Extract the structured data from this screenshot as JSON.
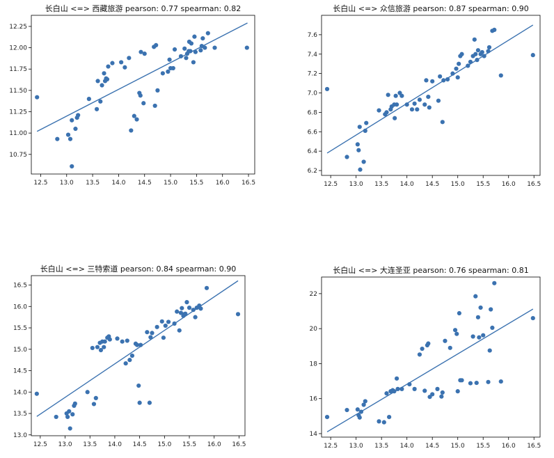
{
  "colors": {
    "marker": "#3b72b0",
    "line": "#3b72b0"
  },
  "chart_data": [
    {
      "type": "scatter",
      "title": "长白山 <=> 西藏旅游 pearson: 0.77 spearman: 0.82",
      "xlim": [
        12.32,
        16.62
      ],
      "ylim": [
        10.52,
        12.38
      ],
      "xticks": [
        12.5,
        13.0,
        13.5,
        14.0,
        14.5,
        15.0,
        15.5,
        16.0,
        16.5
      ],
      "yticks": [
        10.75,
        11.0,
        11.25,
        11.5,
        11.75,
        12.0,
        12.25
      ],
      "xtick_labels": [
        "12.5",
        "13.0",
        "13.5",
        "14.0",
        "14.5",
        "15.0",
        "15.5",
        "16.0",
        "16.5"
      ],
      "ytick_labels": [
        "10.75",
        "11.00",
        "11.25",
        "11.50",
        "11.75",
        "12.00",
        "12.25"
      ],
      "fit": [
        [
          12.43,
          11.02
        ],
        [
          16.48,
          12.29
        ]
      ],
      "points": [
        [
          12.43,
          11.42
        ],
        [
          12.82,
          10.93
        ],
        [
          13.03,
          10.98
        ],
        [
          13.07,
          10.93
        ],
        [
          13.1,
          11.15
        ],
        [
          13.1,
          10.61
        ],
        [
          13.17,
          11.05
        ],
        [
          13.2,
          11.18
        ],
        [
          13.22,
          11.21
        ],
        [
          13.43,
          11.4
        ],
        [
          13.58,
          11.28
        ],
        [
          13.6,
          11.61
        ],
        [
          13.65,
          11.37
        ],
        [
          13.68,
          11.56
        ],
        [
          13.72,
          11.7
        ],
        [
          13.74,
          11.61
        ],
        [
          13.76,
          11.64
        ],
        [
          13.78,
          11.63
        ],
        [
          13.8,
          11.78
        ],
        [
          13.88,
          11.82
        ],
        [
          14.05,
          11.83
        ],
        [
          14.12,
          11.77
        ],
        [
          14.2,
          11.88
        ],
        [
          14.24,
          11.03
        ],
        [
          14.3,
          11.2
        ],
        [
          14.35,
          11.16
        ],
        [
          14.4,
          11.47
        ],
        [
          14.42,
          11.44
        ],
        [
          14.43,
          11.95
        ],
        [
          14.48,
          11.35
        ],
        [
          14.5,
          11.93
        ],
        [
          14.68,
          12.01
        ],
        [
          14.7,
          11.32
        ],
        [
          14.72,
          12.03
        ],
        [
          14.75,
          11.5
        ],
        [
          14.85,
          11.7
        ],
        [
          14.95,
          11.72
        ],
        [
          14.98,
          11.86
        ],
        [
          15.0,
          11.76
        ],
        [
          15.05,
          11.76
        ],
        [
          15.08,
          11.98
        ],
        [
          15.2,
          11.9
        ],
        [
          15.27,
          11.99
        ],
        [
          15.3,
          11.88
        ],
        [
          15.32,
          11.93
        ],
        [
          15.35,
          11.96
        ],
        [
          15.36,
          12.07
        ],
        [
          15.38,
          11.96
        ],
        [
          15.4,
          12.05
        ],
        [
          15.44,
          11.83
        ],
        [
          15.46,
          12.13
        ],
        [
          15.48,
          11.95
        ],
        [
          15.58,
          11.97
        ],
        [
          15.6,
          12.02
        ],
        [
          15.62,
          12.11
        ],
        [
          15.66,
          12.0
        ],
        [
          15.72,
          12.17
        ],
        [
          15.85,
          12.0
        ],
        [
          16.47,
          12.0
        ]
      ]
    },
    {
      "type": "scatter",
      "title": "长白山 <=> 众信旅游 pearson: 0.87 spearman: 0.90",
      "xlim": [
        12.32,
        16.62
      ],
      "ylim": [
        6.15,
        7.8
      ],
      "xticks": [
        12.5,
        13.0,
        13.5,
        14.0,
        14.5,
        15.0,
        15.5,
        16.0,
        16.5
      ],
      "yticks": [
        6.2,
        6.4,
        6.6,
        6.8,
        7.0,
        7.2,
        7.4,
        7.6
      ],
      "xtick_labels": [
        "12.5",
        "13.0",
        "13.5",
        "14.0",
        "14.5",
        "15.0",
        "15.5",
        "16.0",
        "16.5"
      ],
      "ytick_labels": [
        "6.2",
        "6.4",
        "6.6",
        "6.8",
        "7.0",
        "7.2",
        "7.4",
        "7.6"
      ],
      "fit": [
        [
          12.43,
          6.38
        ],
        [
          16.48,
          7.7
        ]
      ],
      "points": [
        [
          12.43,
          7.04
        ],
        [
          12.82,
          6.34
        ],
        [
          13.03,
          6.47
        ],
        [
          13.05,
          6.41
        ],
        [
          13.07,
          6.65
        ],
        [
          13.08,
          6.21
        ],
        [
          13.15,
          6.29
        ],
        [
          13.18,
          6.61
        ],
        [
          13.2,
          6.69
        ],
        [
          13.45,
          6.82
        ],
        [
          13.57,
          6.78
        ],
        [
          13.6,
          6.8
        ],
        [
          13.63,
          6.98
        ],
        [
          13.68,
          6.83
        ],
        [
          13.7,
          6.86
        ],
        [
          13.75,
          6.88
        ],
        [
          13.76,
          6.74
        ],
        [
          13.78,
          6.97
        ],
        [
          13.8,
          6.88
        ],
        [
          13.86,
          7.0
        ],
        [
          13.9,
          6.97
        ],
        [
          14.0,
          6.88
        ],
        [
          14.1,
          6.83
        ],
        [
          14.15,
          6.89
        ],
        [
          14.2,
          6.83
        ],
        [
          14.25,
          6.93
        ],
        [
          14.35,
          6.88
        ],
        [
          14.38,
          7.13
        ],
        [
          14.42,
          6.96
        ],
        [
          14.44,
          6.85
        ],
        [
          14.5,
          7.12
        ],
        [
          14.62,
          6.92
        ],
        [
          14.65,
          7.17
        ],
        [
          14.7,
          6.7
        ],
        [
          14.72,
          7.13
        ],
        [
          14.8,
          7.14
        ],
        [
          14.9,
          7.2
        ],
        [
          14.97,
          7.25
        ],
        [
          15.0,
          7.16
        ],
        [
          15.02,
          7.3
        ],
        [
          15.05,
          7.38
        ],
        [
          15.08,
          7.4
        ],
        [
          15.2,
          7.28
        ],
        [
          15.25,
          7.32
        ],
        [
          15.3,
          7.38
        ],
        [
          15.33,
          7.55
        ],
        [
          15.35,
          7.4
        ],
        [
          15.38,
          7.34
        ],
        [
          15.4,
          7.44
        ],
        [
          15.45,
          7.4
        ],
        [
          15.48,
          7.42
        ],
        [
          15.52,
          7.38
        ],
        [
          15.6,
          7.43
        ],
        [
          15.62,
          7.47
        ],
        [
          15.68,
          7.64
        ],
        [
          15.72,
          7.65
        ],
        [
          15.85,
          7.18
        ],
        [
          16.48,
          7.39
        ]
      ]
    },
    {
      "type": "scatter",
      "title": "长白山 <=> 三特索道 pearson: 0.84 spearman: 0.90",
      "xlim": [
        12.32,
        16.62
      ],
      "ylim": [
        12.98,
        16.72
      ],
      "xticks": [
        12.5,
        13.0,
        13.5,
        14.0,
        14.5,
        15.0,
        15.5,
        16.0,
        16.5
      ],
      "yticks": [
        13.0,
        13.5,
        14.0,
        14.5,
        15.0,
        15.5,
        16.0,
        16.5
      ],
      "xtick_labels": [
        "12.5",
        "13.0",
        "13.5",
        "14.0",
        "14.5",
        "15.0",
        "15.5",
        "16.0",
        "16.5"
      ],
      "ytick_labels": [
        "13.0",
        "13.5",
        "14.0",
        "14.5",
        "15.0",
        "15.5",
        "16.0",
        "16.5"
      ],
      "fit": [
        [
          12.43,
          13.43
        ],
        [
          16.48,
          16.6
        ]
      ],
      "points": [
        [
          12.43,
          13.96
        ],
        [
          12.82,
          13.42
        ],
        [
          13.03,
          13.5
        ],
        [
          13.05,
          13.42
        ],
        [
          13.08,
          13.55
        ],
        [
          13.1,
          13.15
        ],
        [
          13.15,
          13.48
        ],
        [
          13.18,
          13.68
        ],
        [
          13.2,
          13.73
        ],
        [
          13.45,
          14.0
        ],
        [
          13.55,
          15.03
        ],
        [
          13.58,
          13.72
        ],
        [
          13.62,
          13.86
        ],
        [
          13.65,
          15.05
        ],
        [
          13.7,
          15.15
        ],
        [
          13.72,
          14.98
        ],
        [
          13.75,
          15.18
        ],
        [
          13.78,
          15.05
        ],
        [
          13.8,
          15.18
        ],
        [
          13.85,
          15.27
        ],
        [
          13.88,
          15.3
        ],
        [
          13.9,
          15.23
        ],
        [
          14.05,
          15.25
        ],
        [
          14.15,
          15.18
        ],
        [
          14.22,
          14.67
        ],
        [
          14.25,
          15.2
        ],
        [
          14.3,
          14.75
        ],
        [
          14.35,
          14.85
        ],
        [
          14.42,
          15.13
        ],
        [
          14.45,
          15.1
        ],
        [
          14.48,
          14.15
        ],
        [
          14.5,
          13.75
        ],
        [
          14.52,
          15.1
        ],
        [
          14.65,
          15.4
        ],
        [
          14.7,
          13.75
        ],
        [
          14.72,
          15.28
        ],
        [
          14.75,
          15.38
        ],
        [
          14.85,
          15.52
        ],
        [
          14.95,
          15.65
        ],
        [
          14.98,
          15.27
        ],
        [
          15.02,
          15.55
        ],
        [
          15.08,
          15.64
        ],
        [
          15.2,
          15.6
        ],
        [
          15.25,
          15.88
        ],
        [
          15.3,
          15.44
        ],
        [
          15.33,
          15.85
        ],
        [
          15.35,
          15.96
        ],
        [
          15.38,
          15.78
        ],
        [
          15.4,
          15.82
        ],
        [
          15.42,
          15.83
        ],
        [
          15.45,
          16.1
        ],
        [
          15.5,
          15.97
        ],
        [
          15.58,
          15.92
        ],
        [
          15.62,
          15.75
        ],
        [
          15.65,
          15.97
        ],
        [
          15.7,
          16.02
        ],
        [
          15.73,
          15.95
        ],
        [
          15.85,
          16.43
        ],
        [
          16.48,
          15.82
        ]
      ]
    },
    {
      "type": "scatter",
      "title": "长白山 <=> 大连圣亚 pearson: 0.76 spearman: 0.81",
      "xlim": [
        12.32,
        16.62
      ],
      "ylim": [
        13.8,
        22.95
      ],
      "xticks": [
        12.5,
        13.0,
        13.5,
        14.0,
        14.5,
        15.0,
        15.5,
        16.0,
        16.5
      ],
      "yticks": [
        14,
        16,
        18,
        20,
        22
      ],
      "xtick_labels": [
        "12.5",
        "13.0",
        "13.5",
        "14.0",
        "14.5",
        "15.0",
        "15.5",
        "16.0",
        "16.5"
      ],
      "ytick_labels": [
        "14",
        "16",
        "18",
        "20",
        "22"
      ],
      "fit": [
        [
          12.43,
          14.1
        ],
        [
          16.48,
          21.12
        ]
      ],
      "points": [
        [
          12.43,
          14.95
        ],
        [
          12.82,
          15.35
        ],
        [
          13.03,
          15.38
        ],
        [
          13.05,
          15.05
        ],
        [
          13.07,
          14.92
        ],
        [
          13.1,
          15.25
        ],
        [
          13.15,
          15.65
        ],
        [
          13.18,
          15.85
        ],
        [
          13.45,
          14.7
        ],
        [
          13.55,
          14.65
        ],
        [
          13.6,
          16.3
        ],
        [
          13.65,
          14.95
        ],
        [
          13.68,
          16.42
        ],
        [
          13.72,
          16.48
        ],
        [
          13.75,
          16.42
        ],
        [
          13.8,
          17.15
        ],
        [
          13.82,
          16.55
        ],
        [
          13.9,
          16.55
        ],
        [
          14.05,
          16.82
        ],
        [
          14.15,
          16.55
        ],
        [
          14.25,
          18.52
        ],
        [
          14.3,
          18.85
        ],
        [
          14.35,
          16.45
        ],
        [
          14.4,
          19.05
        ],
        [
          14.42,
          19.15
        ],
        [
          14.45,
          16.1
        ],
        [
          14.5,
          16.25
        ],
        [
          14.6,
          16.55
        ],
        [
          14.68,
          16.12
        ],
        [
          14.7,
          16.35
        ],
        [
          14.75,
          19.3
        ],
        [
          14.85,
          18.9
        ],
        [
          14.95,
          19.92
        ],
        [
          14.98,
          19.7
        ],
        [
          15.0,
          16.42
        ],
        [
          15.03,
          20.88
        ],
        [
          15.05,
          17.05
        ],
        [
          15.08,
          17.05
        ],
        [
          15.25,
          16.88
        ],
        [
          15.3,
          19.55
        ],
        [
          15.35,
          21.85
        ],
        [
          15.37,
          16.9
        ],
        [
          15.4,
          20.65
        ],
        [
          15.42,
          19.5
        ],
        [
          15.45,
          21.2
        ],
        [
          15.5,
          19.62
        ],
        [
          15.6,
          16.95
        ],
        [
          15.63,
          18.75
        ],
        [
          15.65,
          21.1
        ],
        [
          15.68,
          20.05
        ],
        [
          15.72,
          22.6
        ],
        [
          15.85,
          16.98
        ],
        [
          16.48,
          20.6
        ]
      ]
    }
  ]
}
